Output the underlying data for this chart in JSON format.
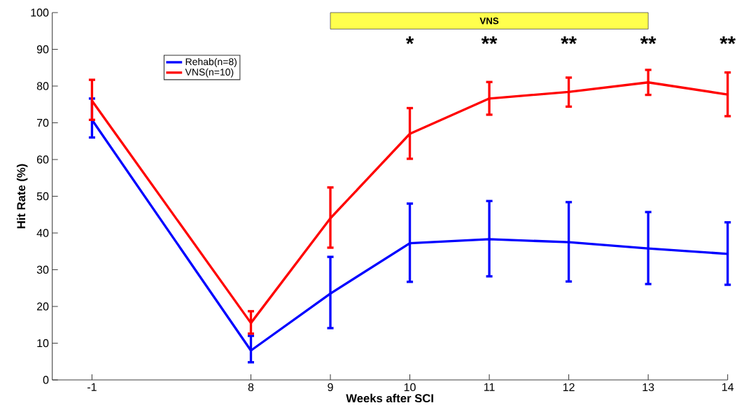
{
  "chart_data": {
    "type": "line",
    "xlabel": "Weeks after SCI",
    "ylabel": "Hit Rate (%)",
    "categories": [
      "-1",
      null,
      "8",
      "9",
      "10",
      "11",
      "12",
      "13",
      "14"
    ],
    "series": [
      {
        "name": "Rehab(n=8)",
        "color": "#0000ff",
        "values": [
          70.8,
          null,
          8,
          23.5,
          37.2,
          38.3,
          37.5,
          35.8,
          34.3
        ],
        "errors": [
          [
            66,
            76.6
          ],
          null,
          [
            4.8,
            12
          ],
          [
            14.1,
            33.5
          ],
          [
            26.7,
            48
          ],
          [
            28.2,
            48.7
          ],
          [
            26.8,
            48.4
          ],
          [
            26.1,
            45.7
          ],
          [
            25.9,
            42.9
          ]
        ]
      },
      {
        "name": "VNS(n=10)",
        "color": "#ff0000",
        "values": [
          76,
          null,
          15.5,
          44,
          67,
          76.6,
          78.4,
          81,
          77.7
        ],
        "errors": [
          [
            70.8,
            81.7
          ],
          null,
          [
            12.6,
            18.7
          ],
          [
            36,
            52.4
          ],
          [
            60.2,
            74
          ],
          [
            72.2,
            81.1
          ],
          [
            74.4,
            82.3
          ],
          [
            77.6,
            84.4
          ],
          [
            71.8,
            83.7
          ]
        ]
      }
    ],
    "ylim": [
      0,
      100
    ],
    "yticks": [
      0,
      10,
      20,
      30,
      40,
      50,
      60,
      70,
      80,
      90,
      100
    ],
    "bands": [
      {
        "axis": "x",
        "from": "9",
        "to": "13",
        "label": "VNS",
        "color": "#ffff4d"
      }
    ],
    "annotations": [
      "*",
      "**",
      "**",
      "**",
      "**"
    ],
    "grid": false,
    "legend": "top left",
    "marker": "none",
    "line_style": "solid"
  }
}
